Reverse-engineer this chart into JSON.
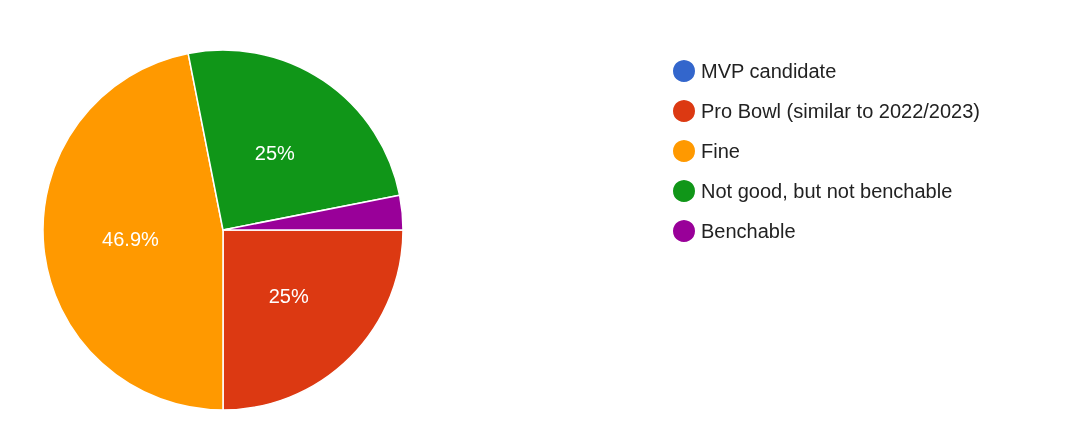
{
  "chart_data": {
    "type": "pie",
    "categories": [
      "MVP candidate",
      "Pro Bowl (similar to 2022/2023)",
      "Fine",
      "Not good, but not benchable",
      "Benchable"
    ],
    "values": [
      0,
      25,
      46.9,
      25,
      3.1
    ],
    "colors": [
      "#3366cc",
      "#dc3912",
      "#ff9900",
      "#109618",
      "#990099"
    ],
    "value_labels": [
      null,
      "25%",
      "46.9%",
      "25%",
      null
    ],
    "legend": "right"
  }
}
